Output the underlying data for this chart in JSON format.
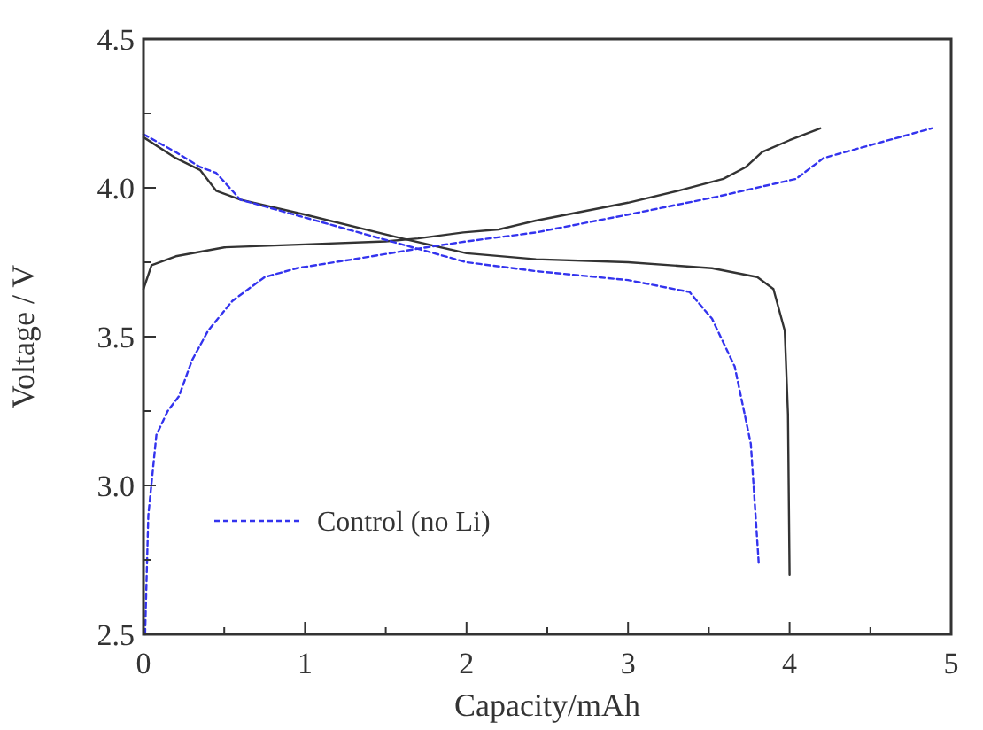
{
  "chart_data": {
    "type": "line",
    "xlabel": "Capacity/mAh",
    "ylabel": "Voltage / V",
    "xlim": [
      0,
      5
    ],
    "ylim": [
      2.5,
      4.5
    ],
    "xticks": [
      0,
      {
        "value": 0.5,
        "label": null
      },
      1,
      {
        "value": 1.5,
        "label": null
      },
      2,
      {
        "value": 2.5,
        "label": null
      },
      3,
      {
        "value": 3.5,
        "label": null
      },
      4,
      {
        "value": 4.5,
        "label": null
      },
      5
    ],
    "yticks": [
      2.5,
      {
        "value": 2.75,
        "label": null
      },
      {
        "value": 3,
        "label": "3.0"
      },
      {
        "value": 3.25,
        "label": null
      },
      3.5,
      {
        "value": 3.75,
        "label": null
      },
      {
        "value": 4,
        "label": "4.0"
      },
      {
        "value": 4.25,
        "label": null
      },
      4.5
    ],
    "grid": false,
    "legend": "bottom left",
    "marker": "none",
    "series": [
      {
        "color": "#333333",
        "line_style": "solid",
        "x": [
          0,
          0.05,
          0.2,
          0.5,
          1.0,
          1.5,
          1.7,
          1.98,
          2.2,
          2.43,
          3.0,
          3.31,
          3.59,
          3.73,
          3.83,
          4.0,
          4.19
        ],
        "values": [
          3.66,
          3.74,
          3.77,
          3.8,
          3.81,
          3.82,
          3.83,
          3.85,
          3.86,
          3.89,
          3.95,
          3.99,
          4.03,
          4.07,
          4.12,
          4.16,
          4.2
        ]
      },
      {
        "color": "#333333",
        "line_style": "solid",
        "x": [
          0,
          0.2,
          0.35,
          0.45,
          0.6,
          1.0,
          1.6,
          2.0,
          2.43,
          3.0,
          3.52,
          3.8,
          3.9,
          3.97,
          3.99,
          4.0
        ],
        "values": [
          4.17,
          4.1,
          4.06,
          3.99,
          3.96,
          3.91,
          3.83,
          3.78,
          3.76,
          3.75,
          3.73,
          3.7,
          3.66,
          3.52,
          3.24,
          2.7
        ]
      },
      {
        "name": "Control (no Li)",
        "color": "#3333ee",
        "line_style": "dashed",
        "x": [
          0.01,
          0.03,
          0.08,
          0.15,
          0.22,
          0.3,
          0.4,
          0.55,
          0.75,
          0.95,
          1.3,
          1.75,
          2.0,
          2.43,
          3.0,
          3.55,
          4.04,
          4.21,
          4.41,
          4.88
        ],
        "values": [
          2.5,
          2.9,
          3.17,
          3.25,
          3.3,
          3.42,
          3.52,
          3.62,
          3.7,
          3.73,
          3.76,
          3.8,
          3.82,
          3.85,
          3.91,
          3.97,
          4.03,
          4.1,
          4.13,
          4.2
        ]
      },
      {
        "color": "#3333ee",
        "line_style": "dashed",
        "x": [
          0,
          0.2,
          0.35,
          0.45,
          0.6,
          1.0,
          1.6,
          2.0,
          2.43,
          3.0,
          3.38,
          3.52,
          3.66,
          3.76,
          3.81
        ],
        "values": [
          4.18,
          4.12,
          4.07,
          4.05,
          3.96,
          3.9,
          3.81,
          3.75,
          3.72,
          3.69,
          3.65,
          3.56,
          3.4,
          3.14,
          2.73
        ]
      }
    ]
  }
}
